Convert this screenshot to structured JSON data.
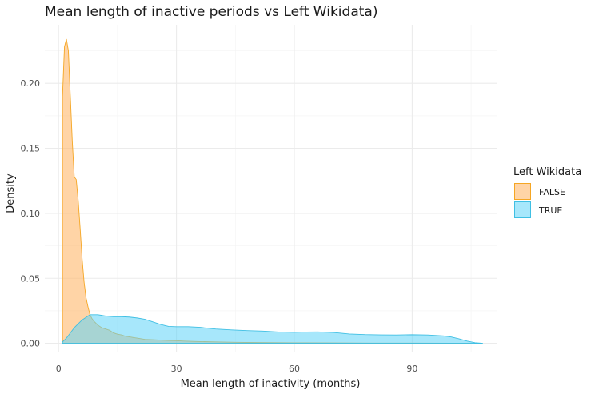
{
  "chart_data": {
    "type": "area",
    "title": "Mean length of inactive periods vs Left Wikidata)",
    "xlabel": "Mean length of inactivity (months)",
    "ylabel": "Density",
    "xlim": [
      -3.5,
      111.5
    ],
    "ylim": [
      -0.007,
      0.245
    ],
    "x_ticks": [
      0,
      30,
      60,
      90
    ],
    "y_ticks": [
      0.0,
      0.05,
      0.1,
      0.15,
      0.2
    ],
    "x_tick_labels": [
      "0",
      "30",
      "60",
      "90"
    ],
    "y_tick_labels": [
      "0.00",
      "0.05",
      "0.10",
      "0.15",
      "0.20"
    ],
    "grid": true,
    "legend_position": "right",
    "legend_title": "Left Wikidata",
    "series": [
      {
        "name": "FALSE",
        "fill": "#ffb76a",
        "fill_opacity": 0.6,
        "stroke": "#f5a623",
        "x": [
          1.0,
          1.5,
          2.0,
          2.5,
          3.0,
          3.5,
          4.0,
          4.5,
          5.0,
          5.5,
          6.0,
          6.5,
          7.0,
          7.5,
          8.0,
          8.5,
          9.0,
          10.0,
          11.0,
          12.0,
          13.0,
          14.0,
          15.0,
          16.0,
          17.0,
          18.0,
          19.0,
          20.0,
          22.0,
          24.0,
          26.0,
          28.0,
          30.0,
          32.0,
          35.0,
          40.0,
          45.0,
          50.0,
          60.0,
          70.0,
          80.0,
          90.0,
          100.0,
          105.0
        ],
        "y": [
          0.19,
          0.228,
          0.234,
          0.225,
          0.19,
          0.155,
          0.128,
          0.126,
          0.11,
          0.088,
          0.065,
          0.047,
          0.035,
          0.028,
          0.022,
          0.019,
          0.017,
          0.014,
          0.012,
          0.011,
          0.01,
          0.008,
          0.007,
          0.0065,
          0.0055,
          0.005,
          0.0045,
          0.004,
          0.003,
          0.0028,
          0.0025,
          0.0022,
          0.002,
          0.0017,
          0.0014,
          0.0011,
          0.0008,
          0.0006,
          0.0004,
          0.0003,
          0.0002,
          0.0002,
          0.0001,
          0.0
        ]
      },
      {
        "name": "TRUE",
        "fill": "#5ed3f7",
        "fill_opacity": 0.55,
        "stroke": "#3fbfe3",
        "x": [
          1.0,
          2.0,
          3.0,
          4.0,
          5.0,
          6.0,
          7.0,
          8.0,
          9.0,
          10.0,
          12.0,
          14.0,
          16.0,
          18.0,
          20.0,
          22.0,
          24.0,
          26.0,
          28.0,
          30.0,
          33.0,
          36.0,
          40.0,
          44.0,
          48.0,
          52.0,
          56.0,
          60.0,
          63.0,
          66.0,
          70.0,
          74.0,
          78.0,
          82.0,
          86.0,
          90.0,
          94.0,
          98.0,
          100.0,
          102.0,
          104.0,
          106.0,
          108.0
        ],
        "y": [
          0.001,
          0.004,
          0.008,
          0.012,
          0.015,
          0.018,
          0.02,
          0.022,
          0.022,
          0.022,
          0.021,
          0.0205,
          0.0205,
          0.0202,
          0.0195,
          0.0185,
          0.0165,
          0.0145,
          0.013,
          0.0128,
          0.0128,
          0.0123,
          0.011,
          0.0103,
          0.0098,
          0.0094,
          0.0087,
          0.0085,
          0.0087,
          0.0088,
          0.0083,
          0.0072,
          0.0067,
          0.0065,
          0.0064,
          0.0066,
          0.0064,
          0.0057,
          0.0049,
          0.0034,
          0.0017,
          0.0005,
          0.0
        ]
      }
    ]
  }
}
